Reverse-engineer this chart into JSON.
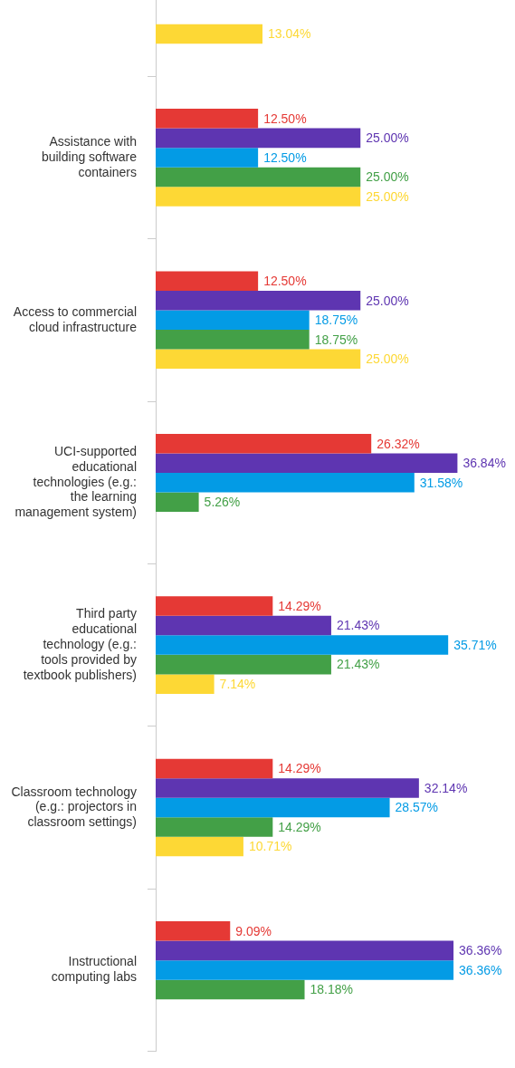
{
  "chart_data": {
    "type": "bar",
    "orientation": "horizontal",
    "categories": [
      null,
      "Assistance with\nbuilding software\ncontainers",
      "Access to commercial\ncloud infrastructure",
      "UCI-supported\neducational\ntechnologies (e.g.:\nthe learning\nmanagement system)",
      "Third party\neducational\ntechnology (e.g.:\ntools provided by\ntextbook publishers)",
      "Classroom technology\n(e.g.: projectors in\nclassroom settings)",
      "Instructional\ncomputing labs"
    ],
    "series": [
      {
        "color": "#e53935",
        "values": [
          null,
          12.5,
          12.5,
          26.32,
          14.29,
          14.29,
          9.09
        ],
        "value_labels": [
          null,
          "12.50%",
          "12.50%",
          "26.32%",
          "14.29%",
          "14.29%",
          "9.09%"
        ]
      },
      {
        "color": "#5e35b1",
        "values": [
          null,
          25.0,
          25.0,
          36.84,
          21.43,
          32.14,
          36.36
        ],
        "value_labels": [
          null,
          "25.00%",
          "25.00%",
          "36.84%",
          "21.43%",
          "32.14%",
          "36.36%"
        ]
      },
      {
        "color": "#039be5",
        "values": [
          null,
          12.5,
          18.75,
          31.58,
          35.71,
          28.57,
          36.36
        ],
        "value_labels": [
          null,
          "12.50%",
          "18.75%",
          "31.58%",
          "35.71%",
          "28.57%",
          "36.36%"
        ]
      },
      {
        "color": "#43a047",
        "values": [
          null,
          25.0,
          18.75,
          5.26,
          21.43,
          14.29,
          18.18
        ],
        "value_labels": [
          null,
          "25.00%",
          "18.75%",
          "5.26%",
          "21.43%",
          "14.29%",
          "18.18%"
        ]
      },
      {
        "color": "#fdd835",
        "values": [
          13.04,
          25.0,
          25.0,
          null,
          7.14,
          10.71,
          null
        ],
        "value_labels": [
          "13.04%",
          "25.00%",
          "25.00%",
          null,
          "7.14%",
          "10.71%",
          null
        ]
      }
    ],
    "tick_labels": "y",
    "grid": false,
    "legend": false
  }
}
